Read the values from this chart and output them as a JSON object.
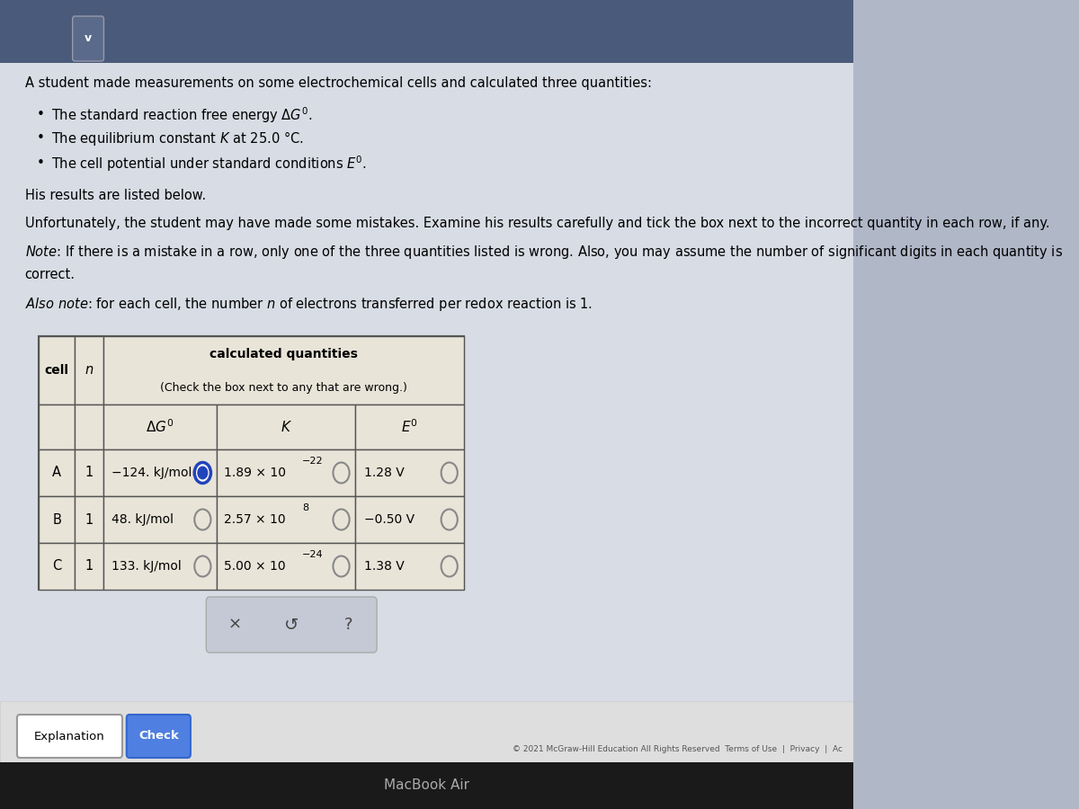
{
  "bg_color": "#b0b8c8",
  "page_bg": "#d8dce4",
  "table_bg": "#e8e4d8",
  "table_border": "#555555",
  "title_text": "A student made measurements on some electrochemical cells and calculated three quantities:",
  "para1": "His results are listed below.",
  "para2": "Unfortunately, the student may have made some mistakes. Examine his results carefully and tick the box next to the incorrect quantity in each row, if any.",
  "para3_line1": "Note: If there is a mistake in a row, only one of the three quantities listed is wrong. Also, you may assume the number of significant digits in each quantity is",
  "para3_line2": "correct.",
  "para4": "Also note: for each cell, the number n of electrons transferred per redox reaction is 1.",
  "table_header1": "calculated quantities",
  "table_header2": "(Check the box next to any that are wrong.)",
  "rows": [
    {
      "cell": "A",
      "n": "1",
      "dG": "−124. kJ/mol",
      "K": "1.89 × 10",
      "K_exp": "−22",
      "E": "1.28 V",
      "dG_checked": true,
      "K_checked": false,
      "E_checked": false
    },
    {
      "cell": "B",
      "n": "1",
      "dG": "48. kJ/mol",
      "K": "2.57 × 10",
      "K_exp": "8",
      "E": "−0.50 V",
      "dG_checked": false,
      "K_checked": false,
      "E_checked": false
    },
    {
      "cell": "C",
      "n": "1",
      "dG": "133. kJ/mol",
      "K": "5.00 × 10",
      "K_exp": "−24",
      "E": "1.38 V",
      "dG_checked": false,
      "K_checked": false,
      "E_checked": false
    }
  ],
  "footer_text": "© 2021 McGraw-Hill Education All Rights Reserved  Terms of Use  |  Privacy  |  Ac",
  "bottom_text": "MacBook Air"
}
